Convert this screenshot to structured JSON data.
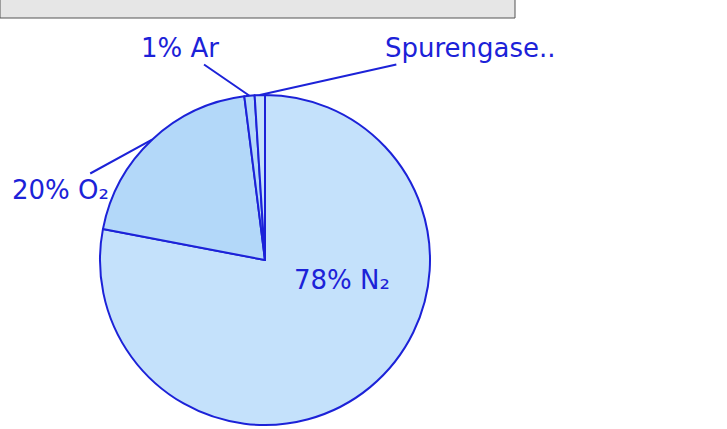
{
  "chart_data": {
    "type": "pie",
    "categories": [
      "N₂",
      "O₂",
      "Ar",
      "Spurengase.."
    ],
    "values": [
      78,
      20,
      1,
      1
    ],
    "value_labels": [
      "78%",
      "20%",
      "1%",
      null
    ],
    "colors": [
      "#c4e1fb",
      "#b3d8f9",
      "#b3d8f9",
      "#c4e1fb"
    ],
    "data_labels": true
  }
}
